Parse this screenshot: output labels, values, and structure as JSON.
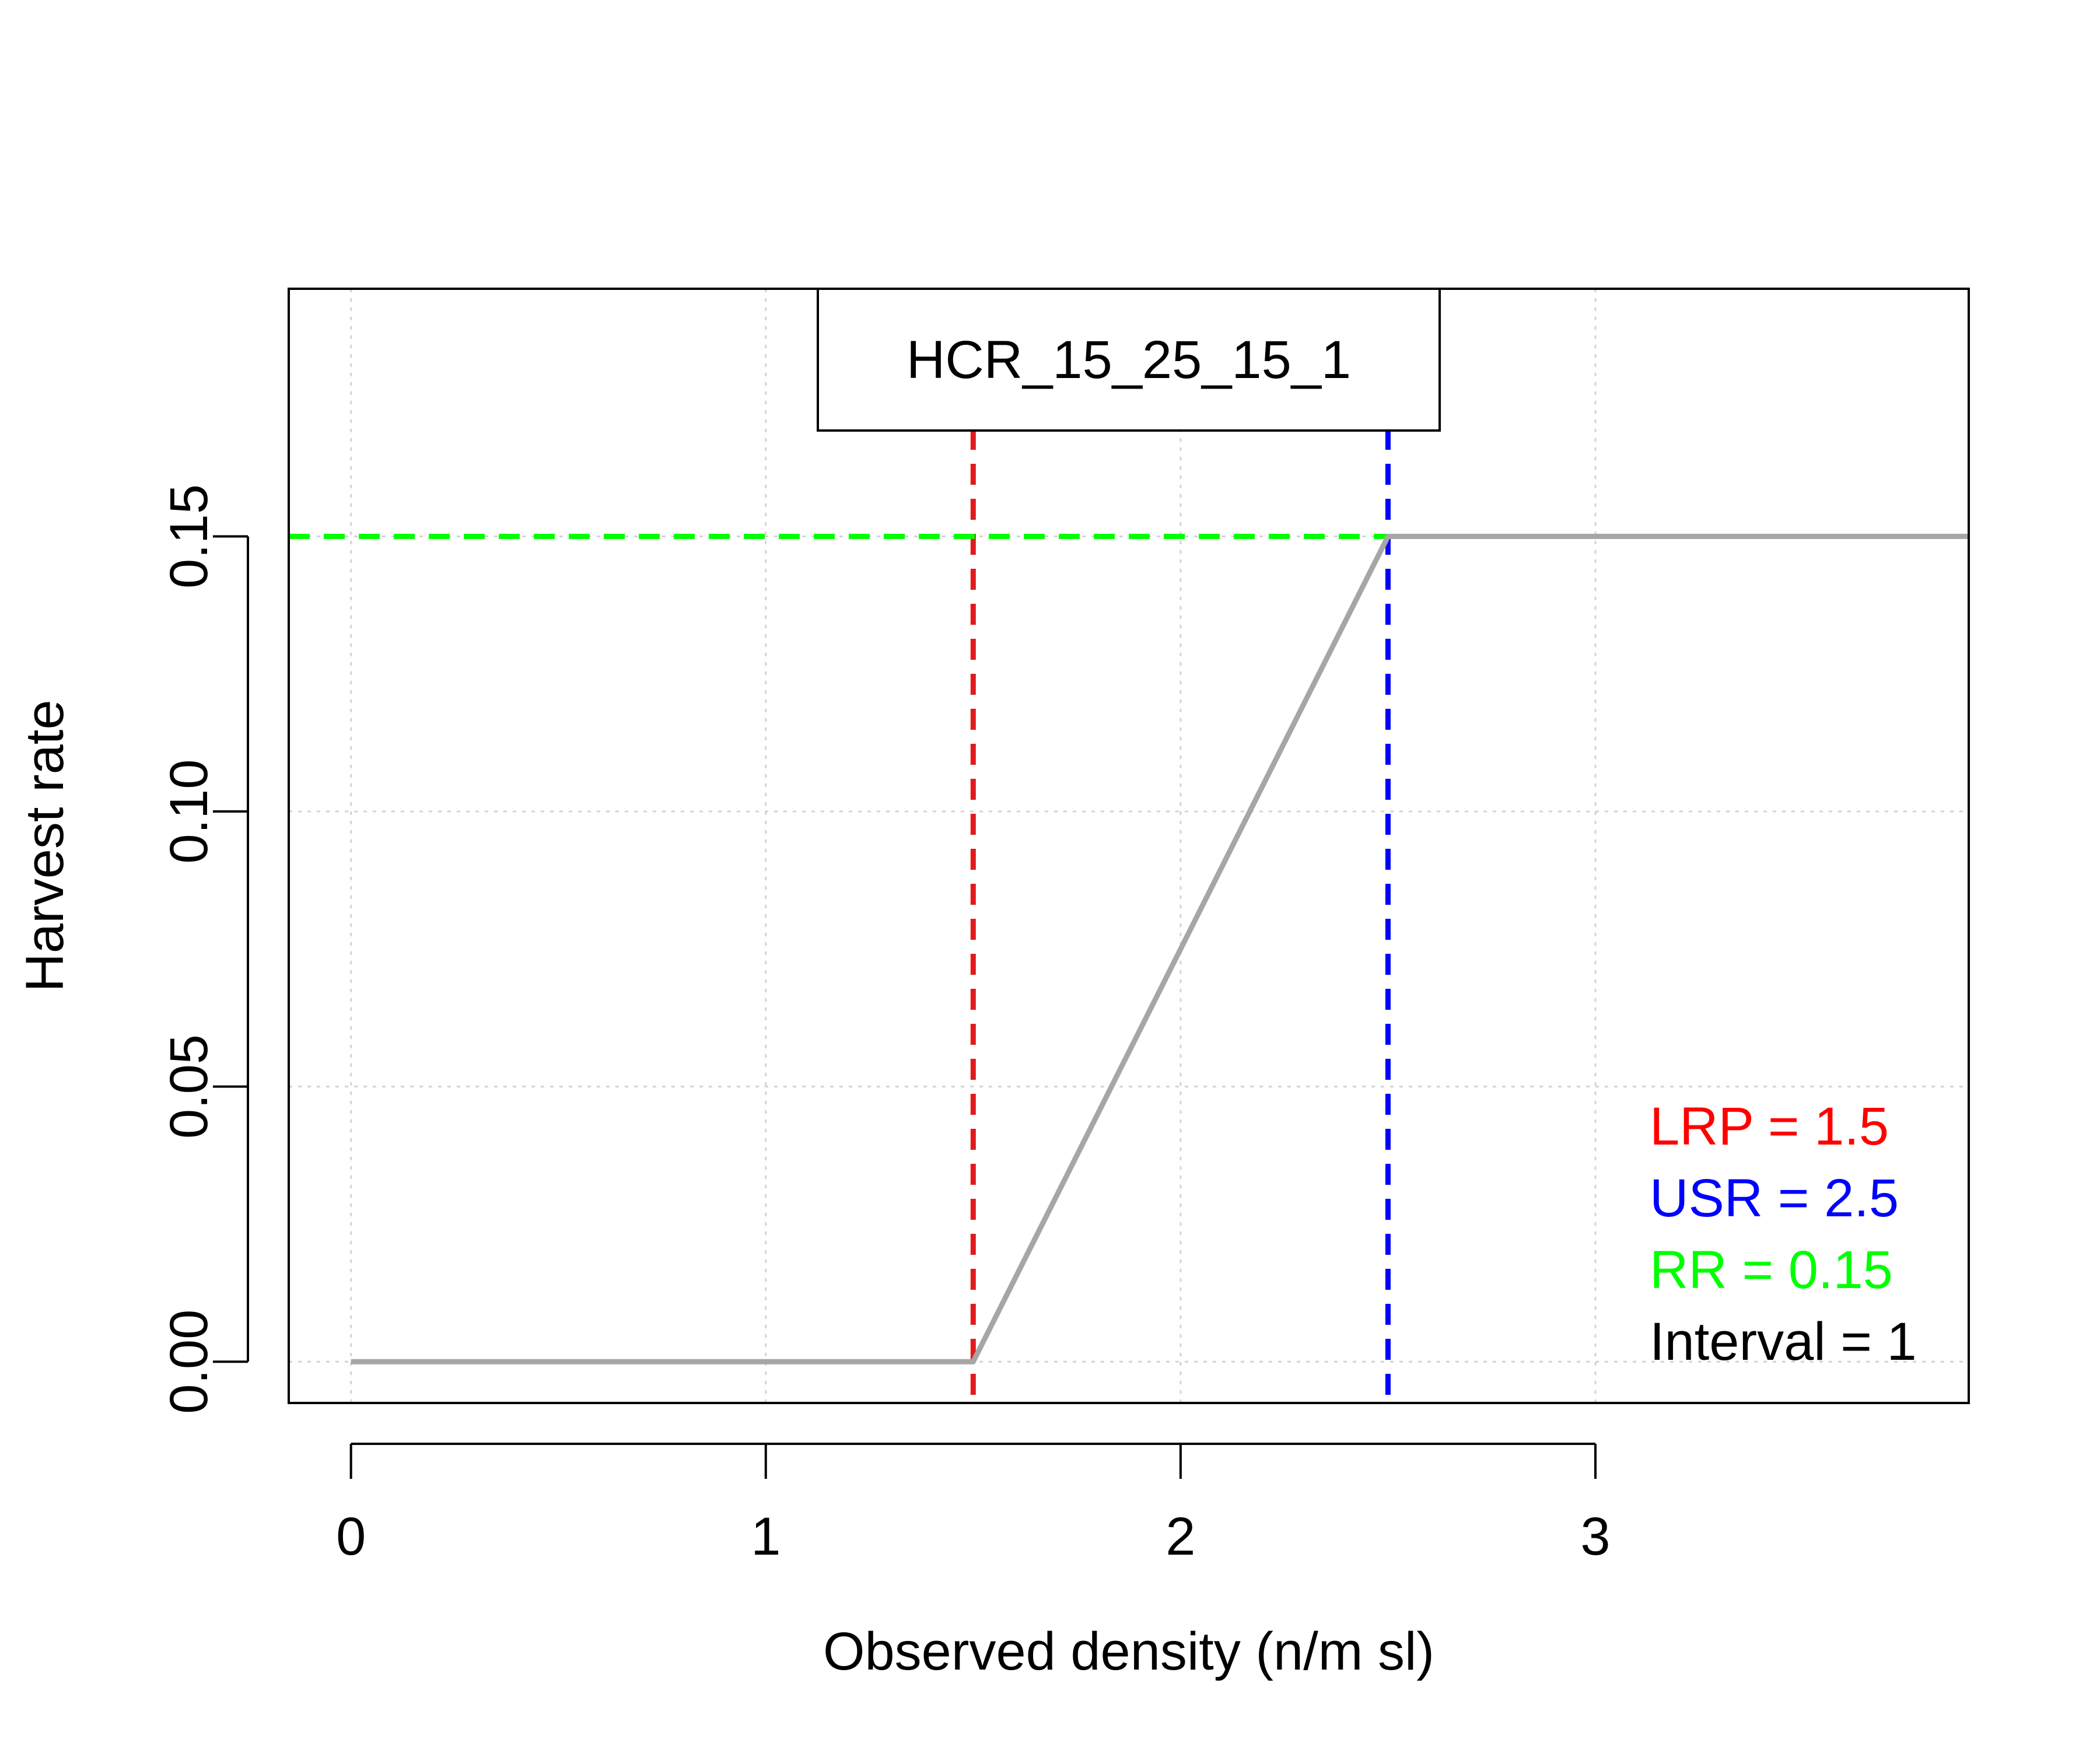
{
  "chart_data": {
    "type": "line",
    "title": "HCR_15_25_15_1",
    "xlabel": "Observed density (n/m sl)",
    "ylabel": "Harvest rate",
    "xlim": [
      -0.15,
      3.9
    ],
    "ylim": [
      -0.0075,
      0.195
    ],
    "x_ticks": [
      0,
      1,
      2,
      3
    ],
    "x_tick_labels": [
      "0",
      "1",
      "2",
      "3"
    ],
    "y_ticks": [
      0.0,
      0.05,
      0.1,
      0.15
    ],
    "y_tick_labels": [
      "0.00",
      "0.05",
      "0.10",
      "0.15"
    ],
    "grid": true,
    "legend_position": "bottom-right",
    "series": [
      {
        "x": [
          0,
          1.5,
          2.5,
          3.9
        ],
        "y": [
          0,
          0,
          0.15,
          0.15
        ],
        "color": "#A6A6A6"
      }
    ],
    "reference_lines": [
      {
        "orientation": "vertical",
        "value": 1.5,
        "color": "#E31A1C",
        "style": "dashed"
      },
      {
        "orientation": "vertical",
        "value": 2.5,
        "color": "#0000FF",
        "style": "dashed"
      },
      {
        "orientation": "horizontal",
        "value": 0.15,
        "x_to": 2.5,
        "color": "#00FF00",
        "style": "dashed"
      }
    ],
    "annotations": [
      {
        "text": "LRP = 1.5",
        "color": "#FF0000"
      },
      {
        "text": "USR = 2.5",
        "color": "#0000FF"
      },
      {
        "text": "RR = 0.15",
        "color": "#00FF00"
      },
      {
        "text": "Interval = 1",
        "color": "#000000"
      }
    ]
  }
}
